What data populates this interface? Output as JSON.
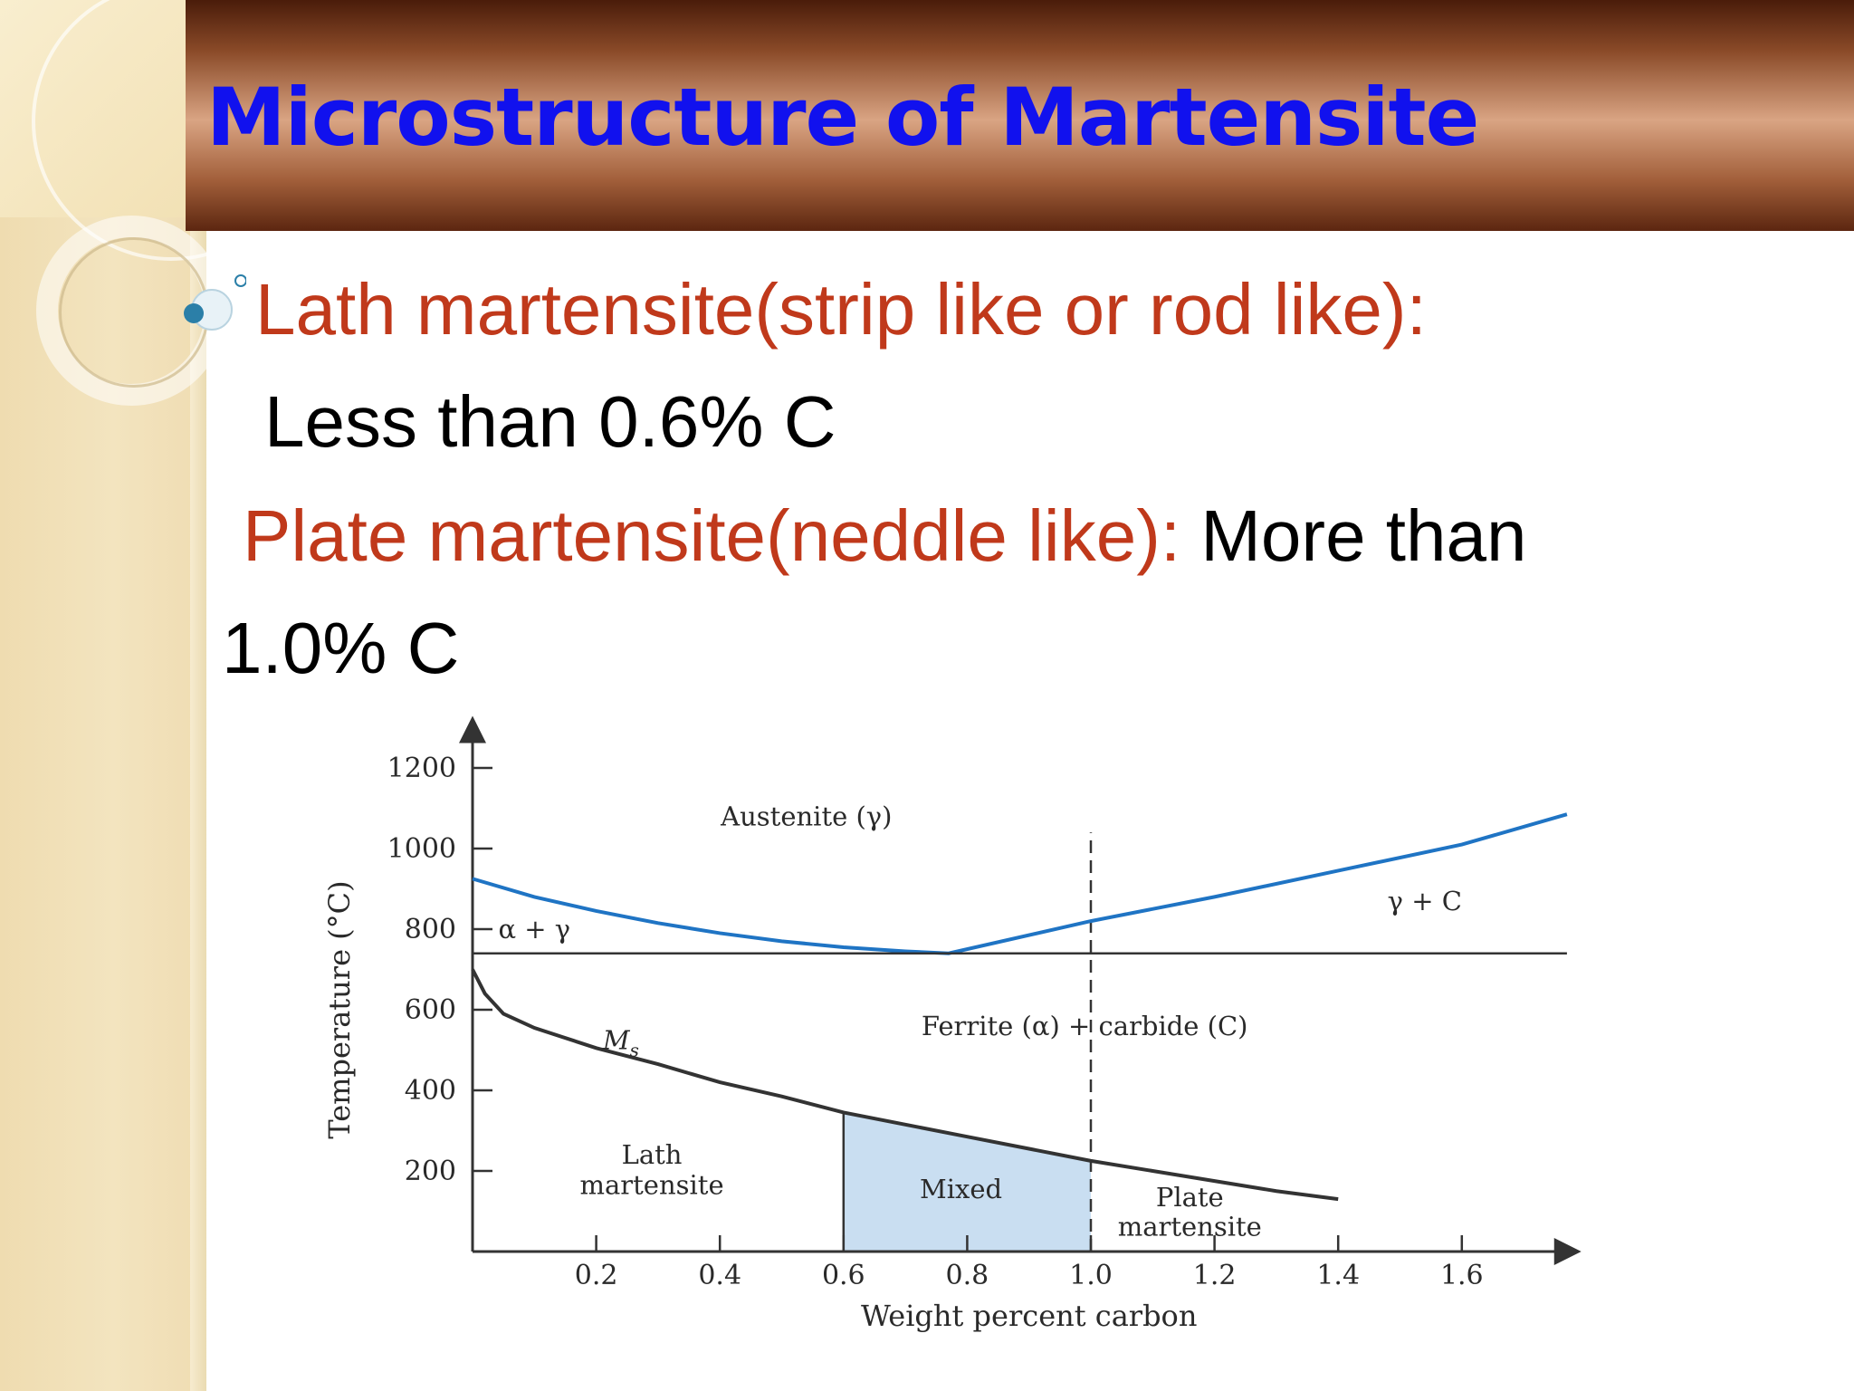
{
  "slide": {
    "title": "Microstructure of Martensite",
    "bullet": {
      "lath_heading": "Lath martensite(strip like or rod like):",
      "lath_detail": "Less than 0.6% C",
      "plate_heading": "Plate martensite(neddle like):",
      "plate_detail_a": " More than",
      "plate_detail_b": "1.0% C"
    }
  },
  "colors": {
    "title": "#1111ee",
    "heading_text": "#c0391b",
    "body_text": "#000000",
    "boundary_line": "#1f74c4",
    "mixed_fill": "#c9def1",
    "banner": "#8a4a28"
  },
  "chart_data": {
    "type": "line",
    "xlabel": "Weight percent carbon",
    "ylabel": "Temperature (°C)",
    "xlim": [
      0,
      1.78
    ],
    "ylim": [
      0,
      1300
    ],
    "x_ticks": [
      "0.2",
      "0.4",
      "0.6",
      "0.8",
      "1.0",
      "1.2",
      "1.4",
      "1.6"
    ],
    "x_tick_values": [
      0.2,
      0.4,
      0.6,
      0.8,
      1.0,
      1.2,
      1.4,
      1.6
    ],
    "y_ticks": [
      "200",
      "400",
      "600",
      "800",
      "1000",
      "1200"
    ],
    "y_tick_values": [
      200,
      400,
      600,
      800,
      1000,
      1200
    ],
    "series": [
      {
        "points": [
          [
            0.0,
            925
          ],
          [
            0.1,
            880
          ],
          [
            0.2,
            845
          ],
          [
            0.3,
            815
          ],
          [
            0.4,
            790
          ],
          [
            0.5,
            770
          ],
          [
            0.6,
            755
          ],
          [
            0.7,
            745
          ],
          [
            0.77,
            740
          ],
          [
            1.0,
            820
          ],
          [
            1.2,
            880
          ],
          [
            1.4,
            945
          ],
          [
            1.6,
            1010
          ],
          [
            1.77,
            1085
          ]
        ]
      },
      {
        "points": [
          [
            0.0,
            740
          ],
          [
            1.77,
            740
          ]
        ]
      },
      {
        "points": [
          [
            0.0,
            700
          ],
          [
            0.02,
            640
          ],
          [
            0.05,
            590
          ],
          [
            0.1,
            555
          ],
          [
            0.2,
            505
          ],
          [
            0.3,
            465
          ],
          [
            0.4,
            420
          ],
          [
            0.5,
            385
          ],
          [
            0.6,
            345
          ],
          [
            0.7,
            315
          ],
          [
            0.8,
            285
          ],
          [
            0.9,
            255
          ],
          [
            1.0,
            225
          ],
          [
            1.1,
            200
          ],
          [
            1.2,
            175
          ],
          [
            1.3,
            150
          ],
          [
            1.4,
            130
          ]
        ]
      }
    ],
    "region_labels": [
      {
        "text": "Austenite (γ)",
        "x": 0.54,
        "y": 1080
      },
      {
        "text": "α + γ",
        "x": 0.1,
        "y": 800
      },
      {
        "text": "γ + C",
        "x": 1.54,
        "y": 870
      },
      {
        "text": "Ferrite (α) + carbide (C)",
        "x": 0.99,
        "y": 560
      },
      {
        "text": "M",
        "sub": "s",
        "x": 0.24,
        "y": 525
      },
      {
        "text": "Lath",
        "x": 0.29,
        "y": 240
      },
      {
        "text": "martensite",
        "x": 0.29,
        "y": 165
      },
      {
        "text": "Mixed",
        "x": 0.79,
        "y": 155
      },
      {
        "text": "Plate",
        "x": 1.16,
        "y": 135
      },
      {
        "text": "martensite",
        "x": 1.16,
        "y": 62
      }
    ],
    "mixed_region": {
      "x_start": 0.6,
      "x_end": 1.0
    },
    "reference_line_x": 1.0
  }
}
